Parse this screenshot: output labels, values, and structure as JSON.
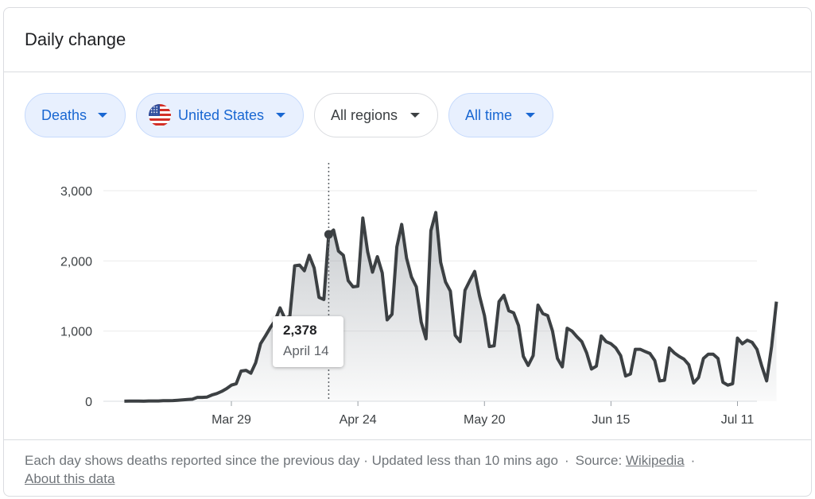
{
  "card": {
    "title": "Daily change"
  },
  "filters": {
    "metric": "Deaths",
    "country": "United States",
    "region": "All regions",
    "time": "All time"
  },
  "colors": {
    "chip_active_bg": "#e8f0fe",
    "chip_active_text": "#1967d2",
    "line": "#3c4043",
    "grid": "#ebebeb"
  },
  "chart_data": {
    "type": "area",
    "title": "",
    "xlabel": "",
    "ylabel": "",
    "ylim": [
      0,
      3000
    ],
    "yticks": [
      {
        "value": 0,
        "label": "0"
      },
      {
        "value": 1000,
        "label": "1,000"
      },
      {
        "value": 2000,
        "label": "2,000"
      },
      {
        "value": 3000,
        "label": "3,000"
      }
    ],
    "xticks": [
      {
        "date": "2020-03-29",
        "label": "Mar 29"
      },
      {
        "date": "2020-04-24",
        "label": "Apr 24"
      },
      {
        "date": "2020-05-20",
        "label": "May 20"
      },
      {
        "date": "2020-06-15",
        "label": "Jun 15"
      },
      {
        "date": "2020-07-11",
        "label": "Jul 11"
      }
    ],
    "x_start": "2020-03-04",
    "x_end": "2020-07-15",
    "grid": true,
    "series": [
      {
        "values": [
          [
            3,
            1
          ],
          [
            4,
            2
          ],
          [
            5,
            2
          ],
          [
            6,
            3
          ],
          [
            7,
            1
          ],
          [
            8,
            4
          ],
          [
            9,
            5
          ],
          [
            10,
            4
          ],
          [
            11,
            8
          ],
          [
            12,
            8
          ],
          [
            13,
            10
          ],
          [
            14,
            15
          ],
          [
            15,
            20
          ],
          [
            16,
            25
          ],
          [
            17,
            30
          ],
          [
            18,
            55
          ],
          [
            19,
            55
          ],
          [
            20,
            60
          ],
          [
            21,
            90
          ],
          [
            22,
            110
          ],
          [
            23,
            140
          ],
          [
            24,
            180
          ],
          [
            25,
            230
          ],
          [
            26,
            250
          ],
          [
            27,
            430
          ],
          [
            28,
            440
          ],
          [
            29,
            400
          ],
          [
            30,
            550
          ],
          [
            31,
            820
          ],
          [
            32,
            930
          ],
          [
            33,
            1050
          ],
          [
            34,
            1150
          ],
          [
            35,
            1330
          ],
          [
            36,
            1180
          ],
          [
            37,
            1210
          ],
          [
            38,
            1930
          ],
          [
            39,
            1940
          ],
          [
            40,
            1860
          ],
          [
            41,
            2080
          ],
          [
            42,
            1900
          ],
          [
            43,
            1480
          ],
          [
            44,
            1450
          ],
          [
            45,
            2378
          ],
          [
            46,
            2440
          ],
          [
            47,
            2140
          ],
          [
            48,
            2080
          ],
          [
            49,
            1720
          ],
          [
            50,
            1630
          ],
          [
            51,
            1640
          ],
          [
            52,
            2610
          ],
          [
            53,
            2130
          ],
          [
            54,
            1840
          ],
          [
            55,
            2060
          ],
          [
            56,
            1830
          ],
          [
            57,
            1160
          ],
          [
            58,
            1240
          ],
          [
            59,
            2200
          ],
          [
            60,
            2520
          ],
          [
            61,
            2040
          ],
          [
            62,
            1770
          ],
          [
            63,
            1630
          ],
          [
            64,
            1130
          ],
          [
            65,
            890
          ],
          [
            66,
            2430
          ],
          [
            67,
            2690
          ],
          [
            68,
            1980
          ],
          [
            69,
            1700
          ],
          [
            70,
            1570
          ],
          [
            71,
            940
          ],
          [
            72,
            850
          ],
          [
            73,
            1580
          ],
          [
            74,
            1720
          ],
          [
            75,
            1850
          ],
          [
            76,
            1500
          ],
          [
            77,
            1220
          ],
          [
            78,
            780
          ],
          [
            79,
            790
          ],
          [
            80,
            1420
          ],
          [
            81,
            1510
          ],
          [
            82,
            1290
          ],
          [
            83,
            1260
          ],
          [
            84,
            1080
          ],
          [
            85,
            640
          ],
          [
            86,
            510
          ],
          [
            87,
            650
          ],
          [
            88,
            1370
          ],
          [
            89,
            1250
          ],
          [
            90,
            1220
          ],
          [
            91,
            1000
          ],
          [
            92,
            610
          ],
          [
            93,
            490
          ],
          [
            94,
            1040
          ],
          [
            95,
            1000
          ],
          [
            96,
            920
          ],
          [
            97,
            850
          ],
          [
            98,
            690
          ],
          [
            99,
            460
          ],
          [
            100,
            500
          ],
          [
            101,
            930
          ],
          [
            102,
            850
          ],
          [
            103,
            820
          ],
          [
            104,
            760
          ],
          [
            105,
            650
          ],
          [
            106,
            360
          ],
          [
            107,
            390
          ],
          [
            108,
            740
          ],
          [
            109,
            740
          ],
          [
            110,
            710
          ],
          [
            111,
            680
          ],
          [
            112,
            580
          ],
          [
            113,
            290
          ],
          [
            114,
            300
          ],
          [
            115,
            760
          ],
          [
            116,
            690
          ],
          [
            117,
            640
          ],
          [
            118,
            600
          ],
          [
            119,
            520
          ],
          [
            120,
            260
          ],
          [
            121,
            340
          ],
          [
            122,
            610
          ],
          [
            123,
            670
          ],
          [
            124,
            670
          ],
          [
            125,
            610
          ],
          [
            126,
            270
          ],
          [
            127,
            230
          ],
          [
            128,
            250
          ],
          [
            129,
            900
          ],
          [
            130,
            820
          ],
          [
            131,
            870
          ],
          [
            132,
            840
          ],
          [
            133,
            740
          ],
          [
            134,
            500
          ],
          [
            135,
            290
          ],
          [
            136,
            780
          ],
          [
            137,
            1420
          ]
        ]
      }
    ],
    "tooltip": {
      "value_label": "2,378",
      "date_label": "April 14",
      "x": 45,
      "value": 2378
    }
  },
  "footer": {
    "text": "Each day shows deaths reported since the previous day · Updated less than 10 mins ago",
    "source_label": "Source:",
    "source_link": "Wikipedia",
    "about_link": "About this data"
  }
}
